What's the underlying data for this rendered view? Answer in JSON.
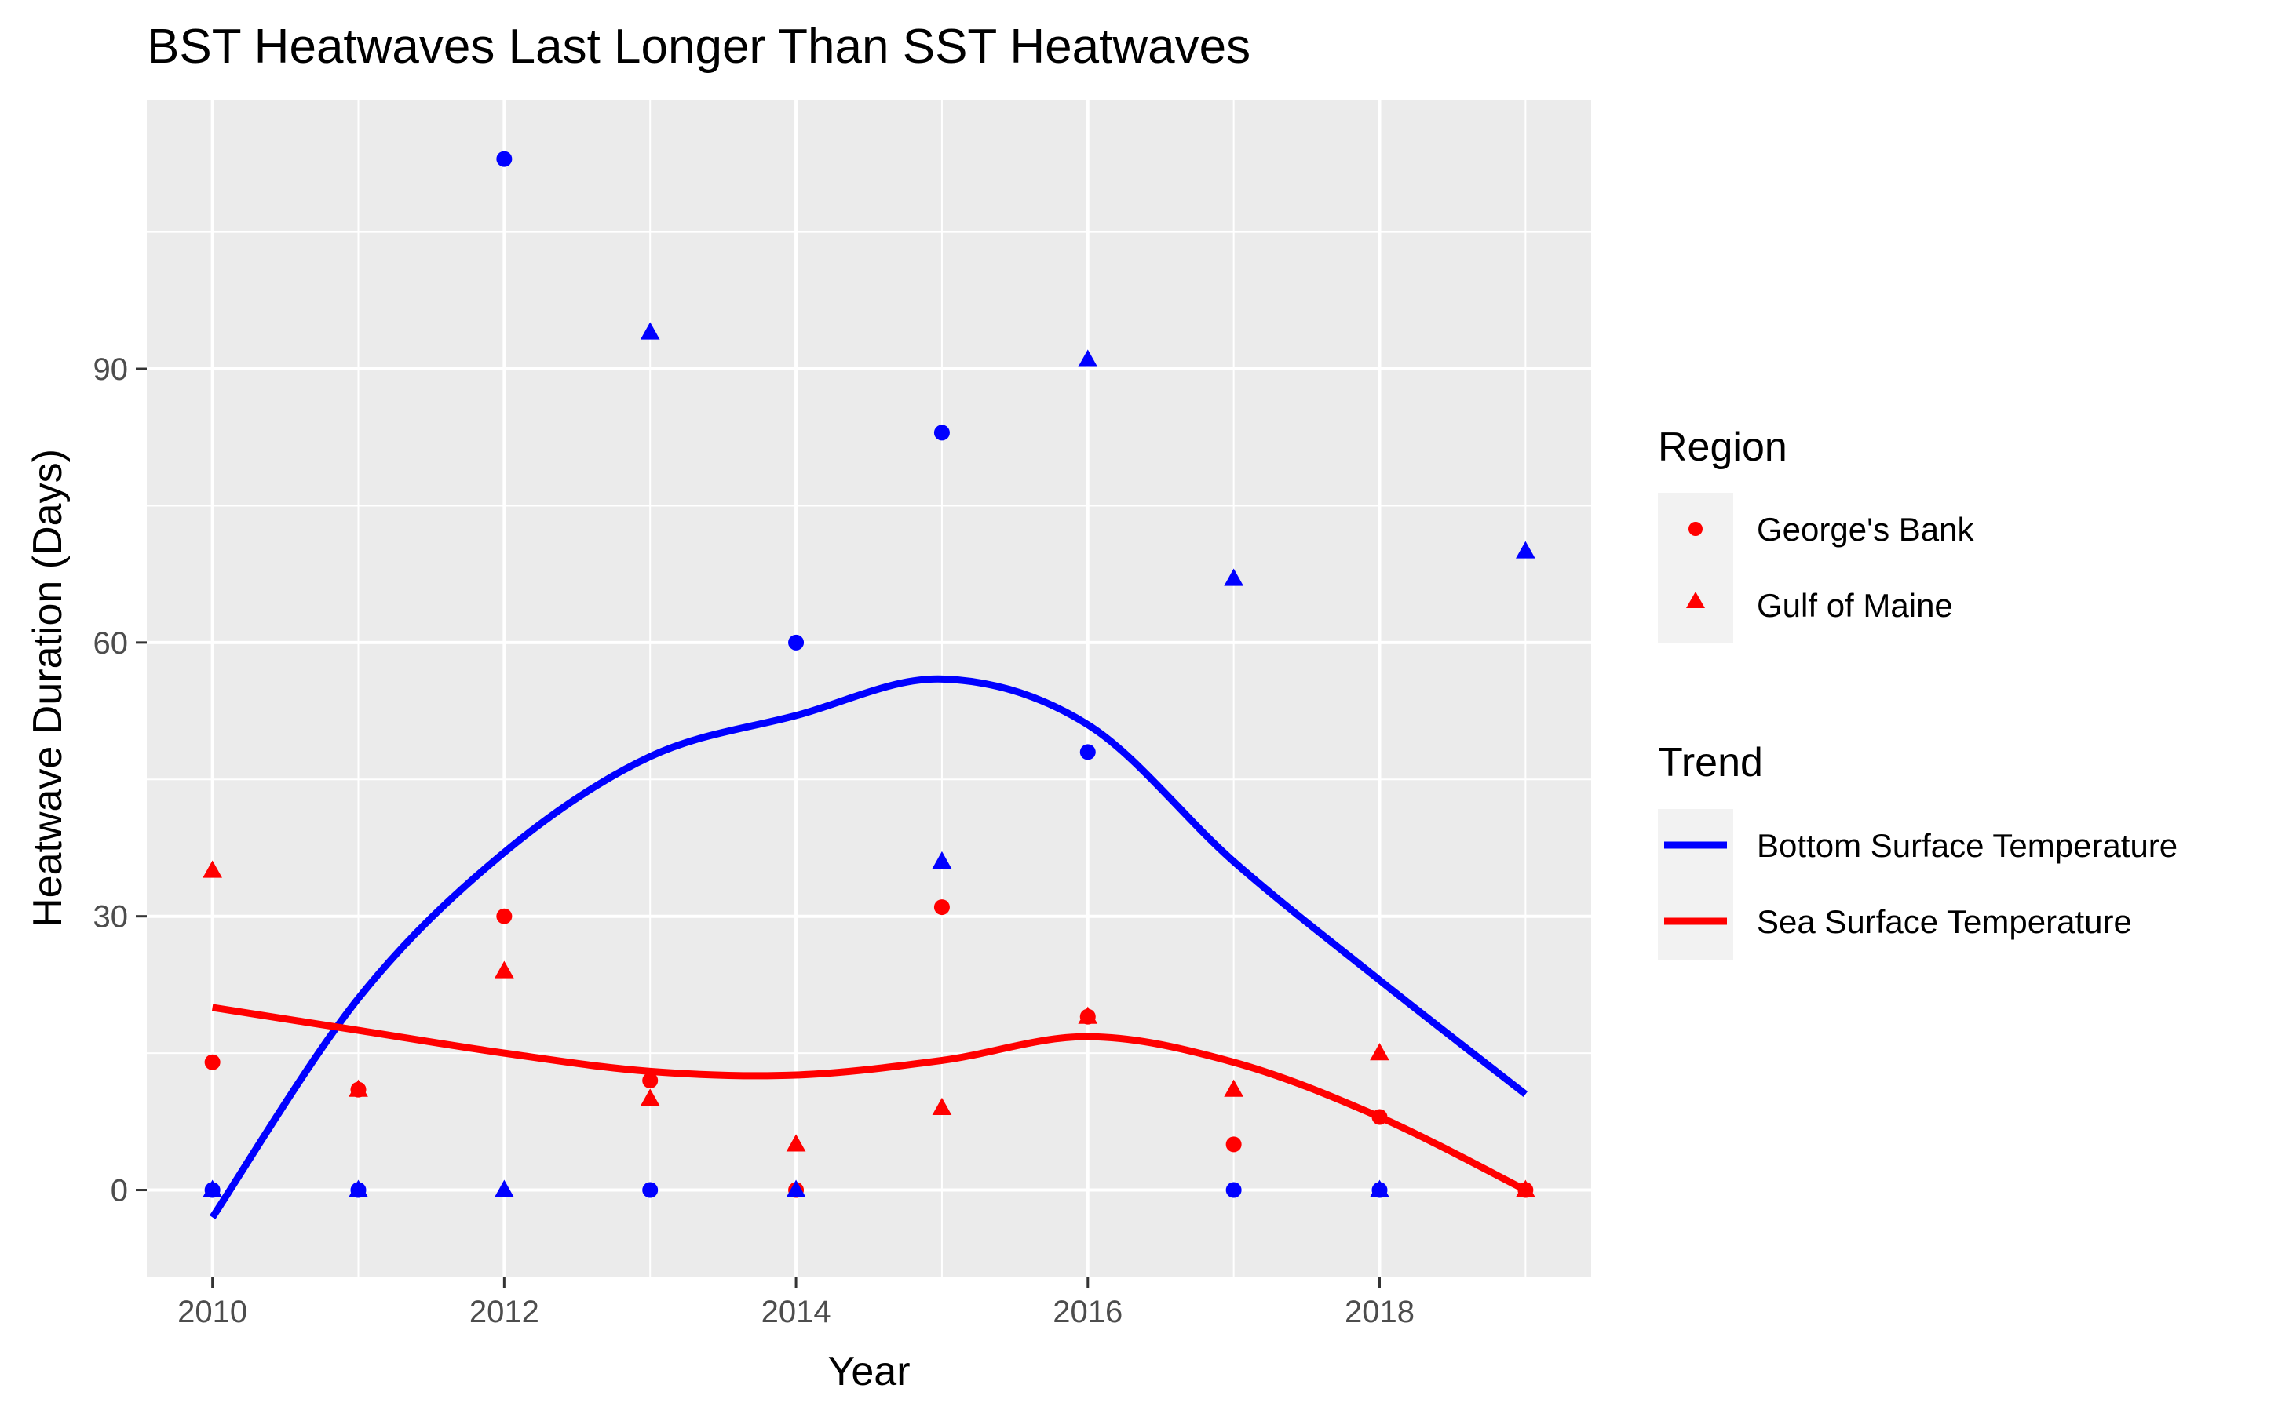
{
  "chart_data": {
    "type": "scatter",
    "title": "BST Heatwaves Last Longer Than SST Heatwaves",
    "xlabel": "Year",
    "ylabel": "Heatwave Duration (Days)",
    "xlim": [
      2009.55,
      2019.45
    ],
    "ylim": [
      -9.5,
      119.5
    ],
    "x_ticks": [
      2010,
      2012,
      2014,
      2016,
      2018
    ],
    "y_ticks": [
      0,
      30,
      60,
      90
    ],
    "grid": true,
    "legend_position": "right",
    "colors": {
      "bst": "#0000ff",
      "sst": "#ff0000",
      "panel": "#ebebeb",
      "grid": "#ffffff"
    },
    "legends": [
      {
        "title": "Region",
        "entries": [
          {
            "label": "George's Bank",
            "shape": "circle"
          },
          {
            "label": "Gulf of Maine",
            "shape": "triangle"
          }
        ]
      },
      {
        "title": "Trend",
        "entries": [
          {
            "label": "Bottom Surface Temperature",
            "color": "#0000ff"
          },
          {
            "label": "Sea Surface Temperature",
            "color": "#ff0000"
          }
        ]
      }
    ],
    "points": [
      {
        "year": 2010,
        "value": 14,
        "region": "George's Bank",
        "color": "#ff0000"
      },
      {
        "year": 2010,
        "value": 35,
        "region": "Gulf of Maine",
        "color": "#ff0000"
      },
      {
        "year": 2010,
        "value": 0,
        "region": "George's Bank",
        "color": "#0000ff"
      },
      {
        "year": 2010,
        "value": 0,
        "region": "Gulf of Maine",
        "color": "#0000ff"
      },
      {
        "year": 2011,
        "value": 11,
        "region": "George's Bank",
        "color": "#ff0000"
      },
      {
        "year": 2011,
        "value": 11,
        "region": "Gulf of Maine",
        "color": "#ff0000"
      },
      {
        "year": 2011,
        "value": 0,
        "region": "George's Bank",
        "color": "#0000ff"
      },
      {
        "year": 2011,
        "value": 0,
        "region": "Gulf of Maine",
        "color": "#0000ff"
      },
      {
        "year": 2012,
        "value": 30,
        "region": "George's Bank",
        "color": "#ff0000"
      },
      {
        "year": 2012,
        "value": 24,
        "region": "Gulf of Maine",
        "color": "#ff0000"
      },
      {
        "year": 2012,
        "value": 113,
        "region": "George's Bank",
        "color": "#0000ff"
      },
      {
        "year": 2012,
        "value": 0,
        "region": "Gulf of Maine",
        "color": "#0000ff"
      },
      {
        "year": 2013,
        "value": 12,
        "region": "George's Bank",
        "color": "#ff0000"
      },
      {
        "year": 2013,
        "value": 10,
        "region": "Gulf of Maine",
        "color": "#ff0000"
      },
      {
        "year": 2013,
        "value": 0,
        "region": "George's Bank",
        "color": "#0000ff"
      },
      {
        "year": 2013,
        "value": 94,
        "region": "Gulf of Maine",
        "color": "#0000ff"
      },
      {
        "year": 2014,
        "value": 0,
        "region": "George's Bank",
        "color": "#ff0000"
      },
      {
        "year": 2014,
        "value": 5,
        "region": "Gulf of Maine",
        "color": "#ff0000"
      },
      {
        "year": 2014,
        "value": 60,
        "region": "George's Bank",
        "color": "#0000ff"
      },
      {
        "year": 2014,
        "value": 0,
        "region": "Gulf of Maine",
        "color": "#0000ff"
      },
      {
        "year": 2015,
        "value": 31,
        "region": "George's Bank",
        "color": "#ff0000"
      },
      {
        "year": 2015,
        "value": 9,
        "region": "Gulf of Maine",
        "color": "#ff0000"
      },
      {
        "year": 2015,
        "value": 83,
        "region": "George's Bank",
        "color": "#0000ff"
      },
      {
        "year": 2015,
        "value": 36,
        "region": "Gulf of Maine",
        "color": "#0000ff"
      },
      {
        "year": 2016,
        "value": 19,
        "region": "George's Bank",
        "color": "#ff0000"
      },
      {
        "year": 2016,
        "value": 19,
        "region": "Gulf of Maine",
        "color": "#ff0000"
      },
      {
        "year": 2016,
        "value": 48,
        "region": "George's Bank",
        "color": "#0000ff"
      },
      {
        "year": 2016,
        "value": 91,
        "region": "Gulf of Maine",
        "color": "#0000ff"
      },
      {
        "year": 2017,
        "value": 5,
        "region": "George's Bank",
        "color": "#ff0000"
      },
      {
        "year": 2017,
        "value": 11,
        "region": "Gulf of Maine",
        "color": "#ff0000"
      },
      {
        "year": 2017,
        "value": 0,
        "region": "George's Bank",
        "color": "#0000ff"
      },
      {
        "year": 2017,
        "value": 67,
        "region": "Gulf of Maine",
        "color": "#0000ff"
      },
      {
        "year": 2018,
        "value": 8,
        "region": "George's Bank",
        "color": "#ff0000"
      },
      {
        "year": 2018,
        "value": 15,
        "region": "Gulf of Maine",
        "color": "#ff0000"
      },
      {
        "year": 2018,
        "value": 0,
        "region": "George's Bank",
        "color": "#0000ff"
      },
      {
        "year": 2018,
        "value": 0,
        "region": "Gulf of Maine",
        "color": "#0000ff"
      },
      {
        "year": 2019,
        "value": 0,
        "region": "George's Bank",
        "color": "#ff0000"
      },
      {
        "year": 2019,
        "value": 0,
        "region": "Gulf of Maine",
        "color": "#ff0000"
      },
      {
        "year": 2019,
        "value": 70,
        "region": "Gulf of Maine",
        "color": "#0000ff"
      }
    ],
    "series": [
      {
        "name": "Bottom Surface Temperature",
        "color": "#0000ff",
        "x": [
          2010,
          2011,
          2012,
          2013,
          2014,
          2015,
          2016,
          2017,
          2018,
          2019
        ],
        "values": [
          -3,
          21,
          37,
          47.5,
          52,
          56,
          51,
          36,
          23,
          10.5
        ]
      },
      {
        "name": "Sea Surface Temperature",
        "color": "#ff0000",
        "x": [
          2010,
          2011,
          2012,
          2013,
          2014,
          2015,
          2016,
          2017,
          2018,
          2019
        ],
        "values": [
          20,
          17.5,
          15,
          13,
          12.6,
          14.2,
          16.8,
          14,
          8,
          0
        ]
      }
    ]
  }
}
